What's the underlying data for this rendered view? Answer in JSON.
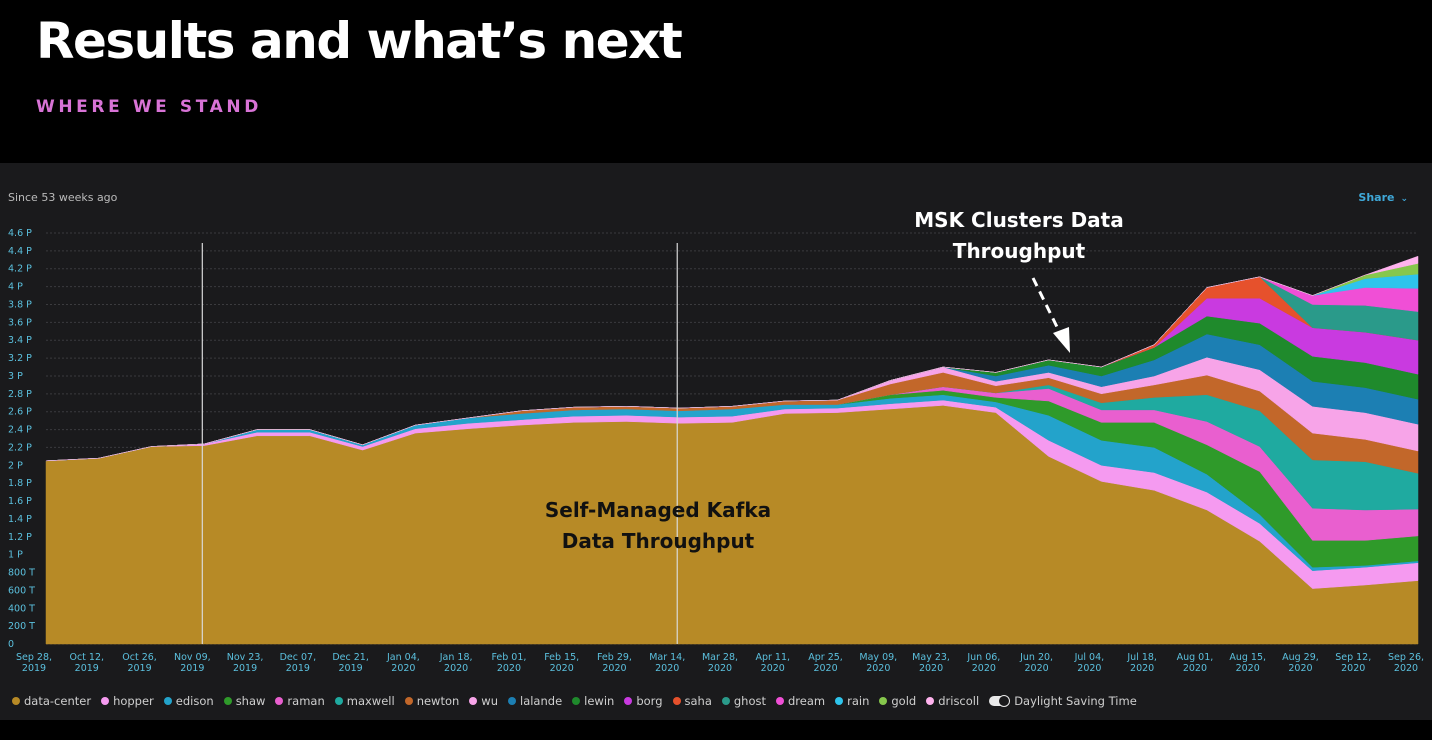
{
  "slide": {
    "title": "Results and what’s next",
    "subtitle": "WHERE WE STAND"
  },
  "panel": {
    "time_range": "Since 53 weeks ago",
    "share_label": "Share",
    "share_icon": "chevron-down-icon"
  },
  "annotations": {
    "msk": [
      "MSK Clusters Data",
      "Throughput"
    ],
    "kafka": [
      "Self-Managed Kafka",
      "Data Throughput"
    ]
  },
  "daylight_saving_label": "Daylight Saving Time",
  "chart_data": {
    "type": "area",
    "stacked": true,
    "x_labels": [
      [
        "Sep 28,",
        "2019"
      ],
      [
        "Oct 12,",
        "2019"
      ],
      [
        "Oct 26,",
        "2019"
      ],
      [
        "Nov 09,",
        "2019"
      ],
      [
        "Nov 23,",
        "2019"
      ],
      [
        "Dec 07,",
        "2019"
      ],
      [
        "Dec 21,",
        "2019"
      ],
      [
        "Jan 04,",
        "2020"
      ],
      [
        "Jan 18,",
        "2020"
      ],
      [
        "Feb 01,",
        "2020"
      ],
      [
        "Feb 15,",
        "2020"
      ],
      [
        "Feb 29,",
        "2020"
      ],
      [
        "Mar 14,",
        "2020"
      ],
      [
        "Mar 28,",
        "2020"
      ],
      [
        "Apr 11,",
        "2020"
      ],
      [
        "Apr 25,",
        "2020"
      ],
      [
        "May 09,",
        "2020"
      ],
      [
        "May 23,",
        "2020"
      ],
      [
        "Jun 06,",
        "2020"
      ],
      [
        "Jun 20,",
        "2020"
      ],
      [
        "Jul 04,",
        "2020"
      ],
      [
        "Jul 18,",
        "2020"
      ],
      [
        "Aug 01,",
        "2020"
      ],
      [
        "Aug 15,",
        "2020"
      ],
      [
        "Aug 29,",
        "2020"
      ],
      [
        "Sep 12,",
        "2020"
      ],
      [
        "Sep 26,",
        "2020"
      ]
    ],
    "y_ticks": [
      "0",
      "200 T",
      "400 T",
      "600 T",
      "800 T",
      "1 P",
      "1.2 P",
      "1.4 P",
      "1.6 P",
      "1.8 P",
      "2 P",
      "2.2 P",
      "2.4 P",
      "2.6 P",
      "2.8 P",
      "3 P",
      "3.2 P",
      "3.4 P",
      "3.6 P",
      "3.8 P",
      "4 P",
      "4.2 P",
      "4.4 P",
      "4.6 P"
    ],
    "y_unit": "P",
    "ylim": [
      0,
      4.6
    ],
    "grid": true,
    "legend_position": "bottom",
    "markers": [
      3,
      12
    ],
    "x": [
      0,
      1,
      2,
      3,
      4,
      5,
      6,
      7,
      8,
      9,
      10,
      11,
      12,
      13,
      14,
      15,
      16,
      17,
      18,
      19,
      20,
      21,
      22,
      23,
      24,
      25,
      26
    ],
    "series": [
      {
        "name": "data-center",
        "color": "#b78a26",
        "values": [
          2.05,
          2.08,
          2.21,
          2.22,
          2.33,
          2.33,
          2.17,
          2.36,
          2.41,
          2.45,
          2.48,
          2.49,
          2.47,
          2.48,
          2.58,
          2.59,
          2.63,
          2.67,
          2.59,
          2.1,
          1.82,
          1.72,
          1.5,
          1.15,
          0.62,
          0.66,
          0.71
        ]
      },
      {
        "name": "hopper",
        "color": "#f59af0",
        "values": [
          0,
          0,
          0,
          0.02,
          0.04,
          0.04,
          0.04,
          0.05,
          0.06,
          0.06,
          0.07,
          0.07,
          0.07,
          0.07,
          0.05,
          0.05,
          0.06,
          0.06,
          0.06,
          0.18,
          0.18,
          0.2,
          0.2,
          0.2,
          0.2,
          0.2,
          0.2
        ]
      },
      {
        "name": "edison",
        "color": "#23a3cb",
        "values": [
          0,
          0,
          0,
          0,
          0.03,
          0.03,
          0.02,
          0.04,
          0.06,
          0.07,
          0.07,
          0.07,
          0.07,
          0.08,
          0.05,
          0.04,
          0.06,
          0.06,
          0.06,
          0.28,
          0.28,
          0.28,
          0.2,
          0.1,
          0.04,
          0.02,
          0.02
        ]
      },
      {
        "name": "shaw",
        "color": "#2f9a2a",
        "values": [
          0,
          0,
          0,
          0,
          0,
          0,
          0,
          0,
          0,
          0,
          0,
          0,
          0,
          0,
          0,
          0,
          0.04,
          0.05,
          0.05,
          0.16,
          0.2,
          0.28,
          0.33,
          0.48,
          0.3,
          0.28,
          0.28
        ]
      },
      {
        "name": "raman",
        "color": "#e95fcf",
        "values": [
          0,
          0,
          0,
          0,
          0,
          0,
          0,
          0,
          0,
          0,
          0,
          0,
          0,
          0,
          0,
          0,
          0,
          0.04,
          0.05,
          0.14,
          0.14,
          0.14,
          0.26,
          0.28,
          0.36,
          0.34,
          0.3
        ]
      },
      {
        "name": "maxwell",
        "color": "#1faaa0",
        "values": [
          0,
          0,
          0,
          0,
          0,
          0,
          0,
          0,
          0,
          0,
          0,
          0,
          0,
          0,
          0,
          0,
          0,
          0,
          0,
          0.04,
          0.08,
          0.14,
          0.3,
          0.4,
          0.54,
          0.54,
          0.4
        ]
      },
      {
        "name": "newton",
        "color": "#c2672a",
        "values": [
          0,
          0,
          0,
          0,
          0,
          0,
          0,
          0,
          0,
          0.03,
          0.03,
          0.03,
          0.03,
          0.03,
          0.04,
          0.05,
          0.12,
          0.16,
          0.08,
          0.08,
          0.1,
          0.14,
          0.22,
          0.22,
          0.3,
          0.25,
          0.25
        ]
      },
      {
        "name": "wu",
        "color": "#f7a4e8",
        "values": [
          0,
          0,
          0,
          0,
          0,
          0,
          0,
          0,
          0,
          0,
          0,
          0,
          0,
          0,
          0,
          0,
          0.04,
          0.06,
          0.05,
          0.06,
          0.08,
          0.1,
          0.2,
          0.24,
          0.3,
          0.3,
          0.3
        ]
      },
      {
        "name": "lalande",
        "color": "#1c7fb3",
        "values": [
          0,
          0,
          0,
          0,
          0,
          0,
          0,
          0,
          0,
          0,
          0,
          0,
          0,
          0,
          0,
          0,
          0,
          0,
          0.06,
          0.08,
          0.12,
          0.18,
          0.26,
          0.28,
          0.28,
          0.28,
          0.28
        ]
      },
      {
        "name": "lewin",
        "color": "#1f8a2c",
        "values": [
          0,
          0,
          0,
          0,
          0,
          0,
          0,
          0,
          0,
          0,
          0,
          0,
          0,
          0,
          0,
          0,
          0,
          0,
          0.04,
          0.06,
          0.1,
          0.14,
          0.2,
          0.24,
          0.28,
          0.28,
          0.28
        ]
      },
      {
        "name": "borg",
        "color": "#c93ae0",
        "values": [
          0,
          0,
          0,
          0,
          0,
          0,
          0,
          0,
          0,
          0,
          0,
          0,
          0,
          0,
          0,
          0,
          0,
          0,
          0,
          0,
          0,
          0,
          0.2,
          0.28,
          0.32,
          0.34,
          0.38
        ]
      },
      {
        "name": "saha",
        "color": "#e6512c",
        "values": [
          0,
          0,
          0,
          0,
          0,
          0,
          0,
          0,
          0,
          0,
          0,
          0,
          0,
          0,
          0,
          0,
          0,
          0,
          0,
          0,
          0,
          0.03,
          0.12,
          0.24,
          0,
          0,
          0
        ]
      },
      {
        "name": "ghost",
        "color": "#2a9a8a",
        "values": [
          0,
          0,
          0,
          0,
          0,
          0,
          0,
          0,
          0,
          0,
          0,
          0,
          0,
          0,
          0,
          0,
          0,
          0,
          0,
          0,
          0,
          0,
          0,
          0,
          0.26,
          0.3,
          0.32
        ]
      },
      {
        "name": "dream",
        "color": "#f04fd6",
        "values": [
          0,
          0,
          0,
          0,
          0,
          0,
          0,
          0,
          0,
          0,
          0,
          0,
          0,
          0,
          0,
          0,
          0,
          0,
          0,
          0,
          0,
          0,
          0,
          0,
          0.1,
          0.2,
          0.26
        ]
      },
      {
        "name": "rain",
        "color": "#2ec4ec",
        "values": [
          0,
          0,
          0,
          0,
          0,
          0,
          0,
          0,
          0,
          0,
          0,
          0,
          0,
          0,
          0,
          0,
          0,
          0,
          0,
          0,
          0,
          0,
          0,
          0,
          0,
          0.1,
          0.16
        ]
      },
      {
        "name": "gold",
        "color": "#86c74c",
        "values": [
          0,
          0,
          0,
          0,
          0,
          0,
          0,
          0,
          0,
          0,
          0,
          0,
          0,
          0,
          0,
          0,
          0,
          0,
          0,
          0,
          0,
          0,
          0,
          0,
          0,
          0.04,
          0.12
        ]
      },
      {
        "name": "driscoll",
        "color": "#ffb3ee",
        "values": [
          0,
          0,
          0,
          0,
          0,
          0,
          0,
          0,
          0,
          0,
          0,
          0,
          0,
          0,
          0,
          0,
          0,
          0,
          0,
          0,
          0,
          0,
          0,
          0,
          0,
          0,
          0.08
        ]
      }
    ]
  }
}
